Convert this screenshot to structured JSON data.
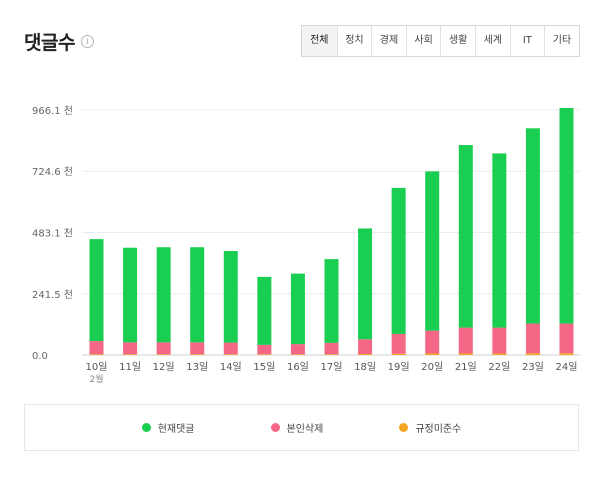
{
  "header": {
    "title": "댓글수",
    "info_icon": "info-circle-icon"
  },
  "tabs": [
    {
      "label": "전체",
      "active": true
    },
    {
      "label": "정치",
      "active": false
    },
    {
      "label": "경제",
      "active": false
    },
    {
      "label": "사회",
      "active": false
    },
    {
      "label": "생활",
      "active": false
    },
    {
      "label": "세계",
      "active": false
    },
    {
      "label": "IT",
      "active": false
    },
    {
      "label": "기타",
      "active": false
    }
  ],
  "chart_data": {
    "type": "bar",
    "stacked": true,
    "categories": [
      "10일",
      "11일",
      "12일",
      "13일",
      "14일",
      "15일",
      "16일",
      "17일",
      "18일",
      "19일",
      "20일",
      "21일",
      "22일",
      "23일",
      "24일"
    ],
    "category_sublabels": [
      "2월",
      "",
      "",
      "",
      "",
      "",
      "",
      "",
      "",
      "",
      "",
      "",
      "",
      "",
      ""
    ],
    "ylim": [
      0,
      966.1
    ],
    "yticks": [
      0.0,
      241.5,
      483.1,
      724.6,
      966.1
    ],
    "ytick_labels": [
      "0.0",
      "241.5 천",
      "483.1 천",
      "724.6 천",
      "966.1 천"
    ],
    "grid": true,
    "legend_position": "bottom",
    "series": [
      {
        "name": "규정미준수",
        "color": "#f5a623",
        "values": [
          3,
          3,
          3,
          3,
          3,
          3,
          3,
          3,
          4,
          5,
          6,
          6,
          6,
          7,
          7
        ]
      },
      {
        "name": "본인삭제",
        "color": "#f56787",
        "values": [
          52,
          47,
          47,
          47,
          46,
          37,
          40,
          45,
          58,
          78,
          90,
          102,
          102,
          117,
          117
        ]
      },
      {
        "name": "현재댓글",
        "color": "#19ce50",
        "values": [
          402,
          373,
          375,
          375,
          361,
          268,
          278,
          330,
          437,
          576,
          628,
          720,
          687,
          770,
          850
        ]
      }
    ]
  }
}
